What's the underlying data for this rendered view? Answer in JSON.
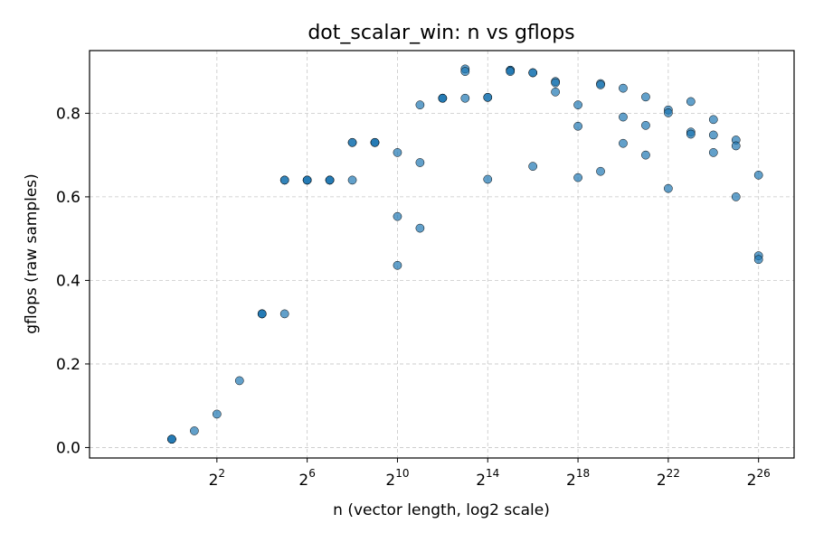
{
  "chart_data": {
    "type": "scatter",
    "title": "dot_scalar_win: n vs gflops",
    "xlabel": "n (vector length, log2 scale)",
    "ylabel": "gflops (raw samples)",
    "x_scale": "log2",
    "xlim": [
      0.08,
      200000000.0
    ],
    "ylim": [
      -0.025,
      0.95
    ],
    "x_ticks": [
      {
        "base": "2",
        "exp": "2",
        "value": 4
      },
      {
        "base": "2",
        "exp": "6",
        "value": 64
      },
      {
        "base": "2",
        "exp": "10",
        "value": 1024
      },
      {
        "base": "2",
        "exp": "14",
        "value": 16384
      },
      {
        "base": "2",
        "exp": "18",
        "value": 262144
      },
      {
        "base": "2",
        "exp": "22",
        "value": 4194304
      },
      {
        "base": "2",
        "exp": "26",
        "value": 67108864
      }
    ],
    "y_ticks": [
      {
        "label": "0.0",
        "value": 0.0
      },
      {
        "label": "0.2",
        "value": 0.2
      },
      {
        "label": "0.4",
        "value": 0.4
      },
      {
        "label": "0.6",
        "value": 0.6
      },
      {
        "label": "0.8",
        "value": 0.8
      }
    ],
    "grid": true,
    "color": "#1f77b4",
    "points": [
      {
        "x": 1,
        "y": 0.02
      },
      {
        "x": 1,
        "y": 0.02
      },
      {
        "x": 1,
        "y": 0.02
      },
      {
        "x": 2,
        "y": 0.04
      },
      {
        "x": 4,
        "y": 0.08
      },
      {
        "x": 8,
        "y": 0.16
      },
      {
        "x": 16,
        "y": 0.32
      },
      {
        "x": 16,
        "y": 0.32
      },
      {
        "x": 16,
        "y": 0.32
      },
      {
        "x": 32,
        "y": 0.64
      },
      {
        "x": 32,
        "y": 0.64
      },
      {
        "x": 32,
        "y": 0.32
      },
      {
        "x": 64,
        "y": 0.64
      },
      {
        "x": 64,
        "y": 0.64
      },
      {
        "x": 64,
        "y": 0.64
      },
      {
        "x": 128,
        "y": 0.64
      },
      {
        "x": 128,
        "y": 0.64
      },
      {
        "x": 128,
        "y": 0.64
      },
      {
        "x": 256,
        "y": 0.73
      },
      {
        "x": 256,
        "y": 0.73
      },
      {
        "x": 256,
        "y": 0.64
      },
      {
        "x": 512,
        "y": 0.73
      },
      {
        "x": 512,
        "y": 0.73
      },
      {
        "x": 512,
        "y": 0.73
      },
      {
        "x": 1024,
        "y": 0.706
      },
      {
        "x": 1024,
        "y": 0.553
      },
      {
        "x": 1024,
        "y": 0.436
      },
      {
        "x": 2048,
        "y": 0.82
      },
      {
        "x": 2048,
        "y": 0.682
      },
      {
        "x": 2048,
        "y": 0.525
      },
      {
        "x": 4096,
        "y": 0.836
      },
      {
        "x": 4096,
        "y": 0.836
      },
      {
        "x": 4096,
        "y": 0.836
      },
      {
        "x": 8192,
        "y": 0.906
      },
      {
        "x": 8192,
        "y": 0.9
      },
      {
        "x": 8192,
        "y": 0.836
      },
      {
        "x": 16384,
        "y": 0.838
      },
      {
        "x": 16384,
        "y": 0.838
      },
      {
        "x": 16384,
        "y": 0.642
      },
      {
        "x": 32768,
        "y": 0.903
      },
      {
        "x": 32768,
        "y": 0.903
      },
      {
        "x": 32768,
        "y": 0.9
      },
      {
        "x": 65536,
        "y": 0.897
      },
      {
        "x": 65536,
        "y": 0.897
      },
      {
        "x": 65536,
        "y": 0.673
      },
      {
        "x": 131072,
        "y": 0.876
      },
      {
        "x": 131072,
        "y": 0.873
      },
      {
        "x": 131072,
        "y": 0.851
      },
      {
        "x": 262144,
        "y": 0.82
      },
      {
        "x": 262144,
        "y": 0.769
      },
      {
        "x": 262144,
        "y": 0.646
      },
      {
        "x": 524288,
        "y": 0.871
      },
      {
        "x": 524288,
        "y": 0.868
      },
      {
        "x": 524288,
        "y": 0.661
      },
      {
        "x": 1048576,
        "y": 0.86
      },
      {
        "x": 1048576,
        "y": 0.791
      },
      {
        "x": 1048576,
        "y": 0.728
      },
      {
        "x": 2097152,
        "y": 0.839
      },
      {
        "x": 2097152,
        "y": 0.771
      },
      {
        "x": 2097152,
        "y": 0.7
      },
      {
        "x": 4194304,
        "y": 0.808
      },
      {
        "x": 4194304,
        "y": 0.801
      },
      {
        "x": 4194304,
        "y": 0.62
      },
      {
        "x": 8388608,
        "y": 0.828
      },
      {
        "x": 8388608,
        "y": 0.755
      },
      {
        "x": 8388608,
        "y": 0.75
      },
      {
        "x": 16777216,
        "y": 0.785
      },
      {
        "x": 16777216,
        "y": 0.748
      },
      {
        "x": 16777216,
        "y": 0.706
      },
      {
        "x": 33554432,
        "y": 0.736
      },
      {
        "x": 33554432,
        "y": 0.722
      },
      {
        "x": 33554432,
        "y": 0.6
      },
      {
        "x": 67108864,
        "y": 0.652
      },
      {
        "x": 67108864,
        "y": 0.459
      },
      {
        "x": 67108864,
        "y": 0.45
      }
    ]
  }
}
